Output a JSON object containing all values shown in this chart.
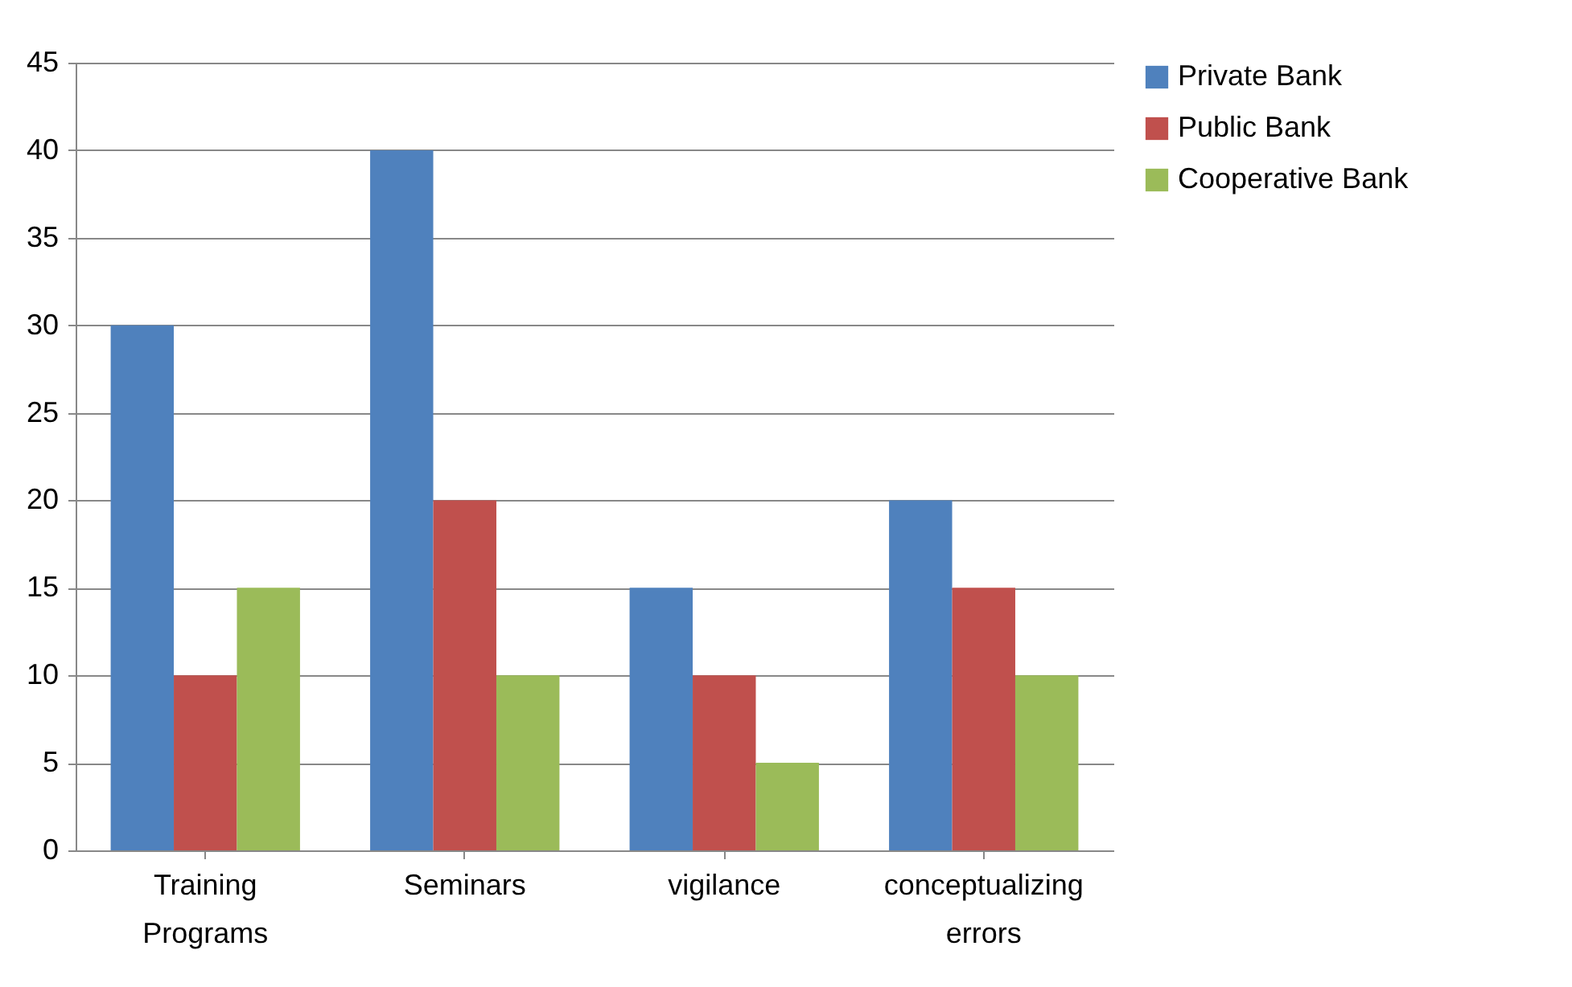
{
  "chart_data": {
    "type": "bar",
    "categories": [
      "Training Programs",
      "Seminars",
      "vigilance",
      "conceptualizing errors"
    ],
    "series": [
      {
        "name": "Private Bank",
        "color": "#4f81bd",
        "values": [
          30,
          40,
          15,
          20
        ]
      },
      {
        "name": "Public Bank",
        "color": "#c0504d",
        "values": [
          10,
          20,
          10,
          15
        ]
      },
      {
        "name": "Cooperative Bank",
        "color": "#9bbb59",
        "values": [
          15,
          10,
          5,
          10
        ]
      }
    ],
    "ylim": [
      0,
      45
    ],
    "yticks": [
      0,
      5,
      10,
      15,
      20,
      25,
      30,
      35,
      40,
      45
    ],
    "grid": "y",
    "legend": "right"
  }
}
